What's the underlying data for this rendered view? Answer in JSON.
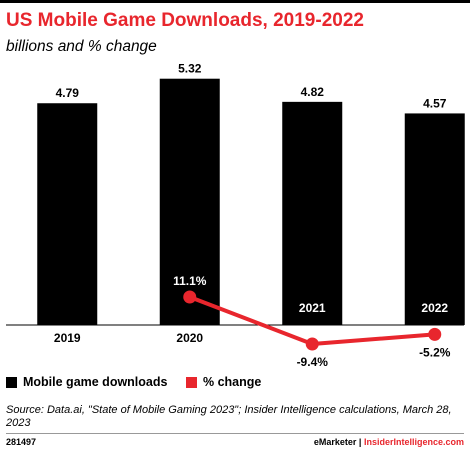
{
  "header": {
    "title": "US Mobile Game Downloads, 2019-2022",
    "subtitle": "billions and % change"
  },
  "chart_data": {
    "type": "bar",
    "categories": [
      "2019",
      "2020",
      "2021",
      "2022"
    ],
    "series": [
      {
        "name": "Mobile game downloads",
        "type": "bar",
        "values": [
          4.79,
          5.32,
          4.82,
          4.57
        ],
        "labels": [
          "4.79",
          "5.32",
          "4.82",
          "4.57"
        ]
      },
      {
        "name": "% change",
        "type": "line",
        "values": [
          null,
          11.1,
          -9.4,
          -5.2
        ],
        "labels": [
          "",
          "11.1%",
          "-9.4%",
          "-5.2%"
        ]
      }
    ],
    "ylim": [
      0,
      5.4
    ],
    "pct_ylim": [
      -9.4,
      11.1
    ],
    "grid": false,
    "legend_position": "bottom-left",
    "colors": {
      "bars": "#000000",
      "line": "#e8262d"
    }
  },
  "legend": {
    "items": [
      {
        "label": "Mobile game downloads",
        "color": "#000000"
      },
      {
        "label": "% change",
        "color": "#e8262d"
      }
    ]
  },
  "footer": {
    "source": "Source: Data.ai, \"State of Mobile Gaming 2023\"; Insider Intelligence calculations, March 28, 2023",
    "chart_id": "281497",
    "brand_emarketer": "eMarketer",
    "separator": "|",
    "brand_ii": "InsiderIntelligence.com"
  }
}
